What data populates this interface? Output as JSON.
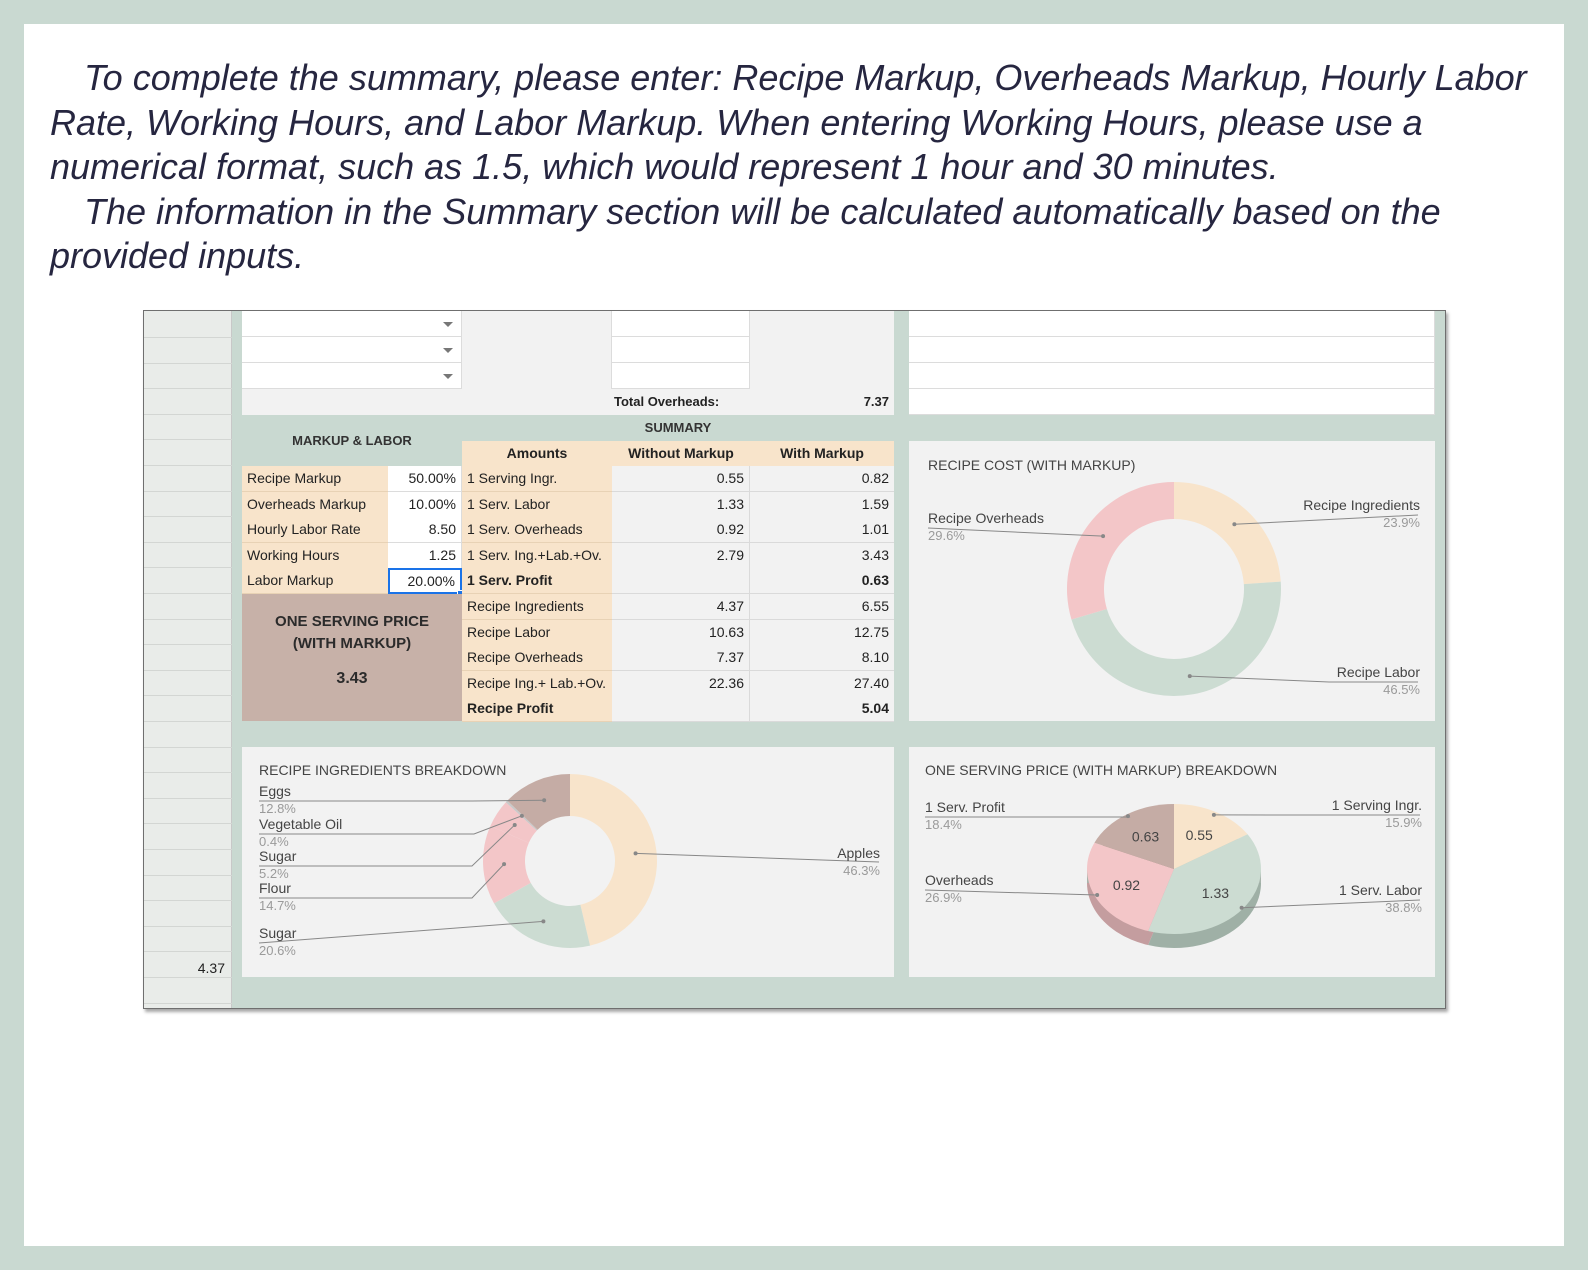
{
  "intro": {
    "paragraph1": "To complete the summary, please enter: Recipe Markup, Overheads Markup, Hourly Labor Rate, Working Hours, and Labor Markup. When entering Working Hours, please use a numerical format, such as 1.5, which would represent 1 hour and 30 minutes.",
    "paragraph2": "The information in the Summary section will be calculated automatically based on the provided inputs."
  },
  "sheet": {
    "total_overheads_label": "Total Overheads:",
    "total_overheads_value": "7.37",
    "left_total": "4.37",
    "markup_labor": {
      "title": "MARKUP & LABOR",
      "rows": [
        {
          "label": "Recipe Markup",
          "value": "50.00%"
        },
        {
          "label": "Overheads Markup",
          "value": "10.00%"
        },
        {
          "label": "Hourly Labor Rate",
          "value": "8.50"
        },
        {
          "label": "Working Hours",
          "value": "1.25"
        },
        {
          "label": "Labor Markup",
          "value": "20.00%"
        }
      ]
    },
    "price_box": {
      "line1": "ONE SERVING PRICE",
      "line2": "(WITH MARKUP)",
      "value": "3.43"
    },
    "summary": {
      "title": "SUMMARY",
      "headers": {
        "amounts": "Amounts",
        "without": "Without Markup",
        "with": "With Markup"
      },
      "rows": [
        {
          "label": "1 Serving Ingr.",
          "without": "0.55",
          "with": "0.82",
          "bold": false
        },
        {
          "label": "1 Serv. Labor",
          "without": "1.33",
          "with": "1.59",
          "bold": false
        },
        {
          "label": "1 Serv. Overheads",
          "without": "0.92",
          "with": "1.01",
          "bold": false
        },
        {
          "label": "1 Serv. Ing.+Lab.+Ov.",
          "without": "2.79",
          "with": "3.43",
          "bold": false
        },
        {
          "label": "1 Serv. Profit",
          "without": "",
          "with": "0.63",
          "bold": true
        },
        {
          "label": "Recipe Ingredients",
          "without": "4.37",
          "with": "6.55",
          "bold": false
        },
        {
          "label": "Recipe Labor",
          "without": "10.63",
          "with": "12.75",
          "bold": false
        },
        {
          "label": "Recipe Overheads",
          "without": "7.37",
          "with": "8.10",
          "bold": false
        },
        {
          "label": "Recipe Ing.+ Lab.+Ov.",
          "without": "22.36",
          "with": "27.40",
          "bold": false
        },
        {
          "label": "Recipe Profit",
          "without": "",
          "with": "5.04",
          "bold": true
        }
      ]
    }
  },
  "chart_data": [
    {
      "type": "pie",
      "title": "RECIPE COST (WITH MARKUP)",
      "slices": [
        {
          "label": "Recipe Ingredients",
          "pct": "23.9%",
          "value": 23.9,
          "color": "#f8e4cb"
        },
        {
          "label": "Recipe Labor",
          "pct": "46.5%",
          "value": 46.5,
          "color": "#ccdcd2"
        },
        {
          "label": "Recipe Overheads",
          "pct": "29.6%",
          "value": 29.6,
          "color": "#f3c6c8"
        }
      ]
    },
    {
      "type": "pie",
      "title": "RECIPE INGREDIENTS BREAKDOWN",
      "slices": [
        {
          "label": "Apples",
          "pct": "46.3%",
          "value": 46.3,
          "color": "#f8e4cb"
        },
        {
          "label": "Sugar",
          "pct": "20.6%",
          "value": 20.6,
          "color": "#ccdcd2"
        },
        {
          "label": "Flour",
          "pct": "14.7%",
          "value": 14.7,
          "color": "#f3c6c8"
        },
        {
          "label": "Sugar",
          "pct": "5.2%",
          "value": 5.2,
          "color": "#f3c6c8"
        },
        {
          "label": "Vegetable Oil",
          "pct": "0.4%",
          "value": 0.4,
          "color": "#c9c9c9"
        },
        {
          "label": "Eggs",
          "pct": "12.8%",
          "value": 12.8,
          "color": "#c5aca5"
        }
      ]
    },
    {
      "type": "pie",
      "title": "ONE SERVING PRICE (WITH MARKUP) BREAKDOWN",
      "slices": [
        {
          "label": "1 Serving Ingr.",
          "pct": "15.9%",
          "value": 0.55,
          "display": "0.55",
          "color": "#f8e4cb"
        },
        {
          "label": "1 Serv. Labor",
          "pct": "38.8%",
          "value": 1.33,
          "display": "1.33",
          "color": "#ccdcd2"
        },
        {
          "label": "Overheads",
          "pct": "26.9%",
          "value": 0.92,
          "display": "0.92",
          "color": "#f3c6c8"
        },
        {
          "label": "1 Serv. Profit",
          "pct": "18.4%",
          "value": 0.63,
          "display": "0.63",
          "color": "#c5aca5"
        }
      ]
    }
  ]
}
